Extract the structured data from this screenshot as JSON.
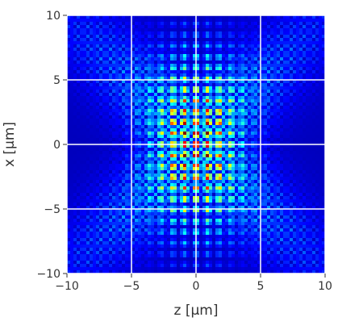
{
  "chart_data": {
    "type": "heatmap",
    "title": "",
    "xlabel": "z [μm]",
    "ylabel": "x [μm]",
    "xlim": [
      -10,
      10
    ],
    "ylim": [
      -10,
      10
    ],
    "x_ticks": [
      -10,
      -5,
      0,
      5,
      10
    ],
    "y_ticks": [
      -10,
      -5,
      0,
      5,
      10
    ],
    "x_tick_labels": [
      "−10",
      "−5",
      "0",
      "5",
      "10"
    ],
    "y_tick_labels": [
      "−10",
      "−5",
      "0",
      "5",
      "10"
    ],
    "grid": true,
    "grid_color": "#ffffff",
    "colormap": "jet",
    "pattern": "interference of crossing beams: bright lattice of lobes centered at (z=0, x=0), maximum near center, decaying outward; diagonal fringe bands along x = ±z",
    "center": {
      "z": 0,
      "x": 0
    },
    "peak_intensity": 1.0,
    "fringe_period_z_um": 0.9,
    "fringe_period_x_um": 0.85,
    "envelope_width_z_um": 2.4,
    "envelope_width_x_um": 5.0
  }
}
